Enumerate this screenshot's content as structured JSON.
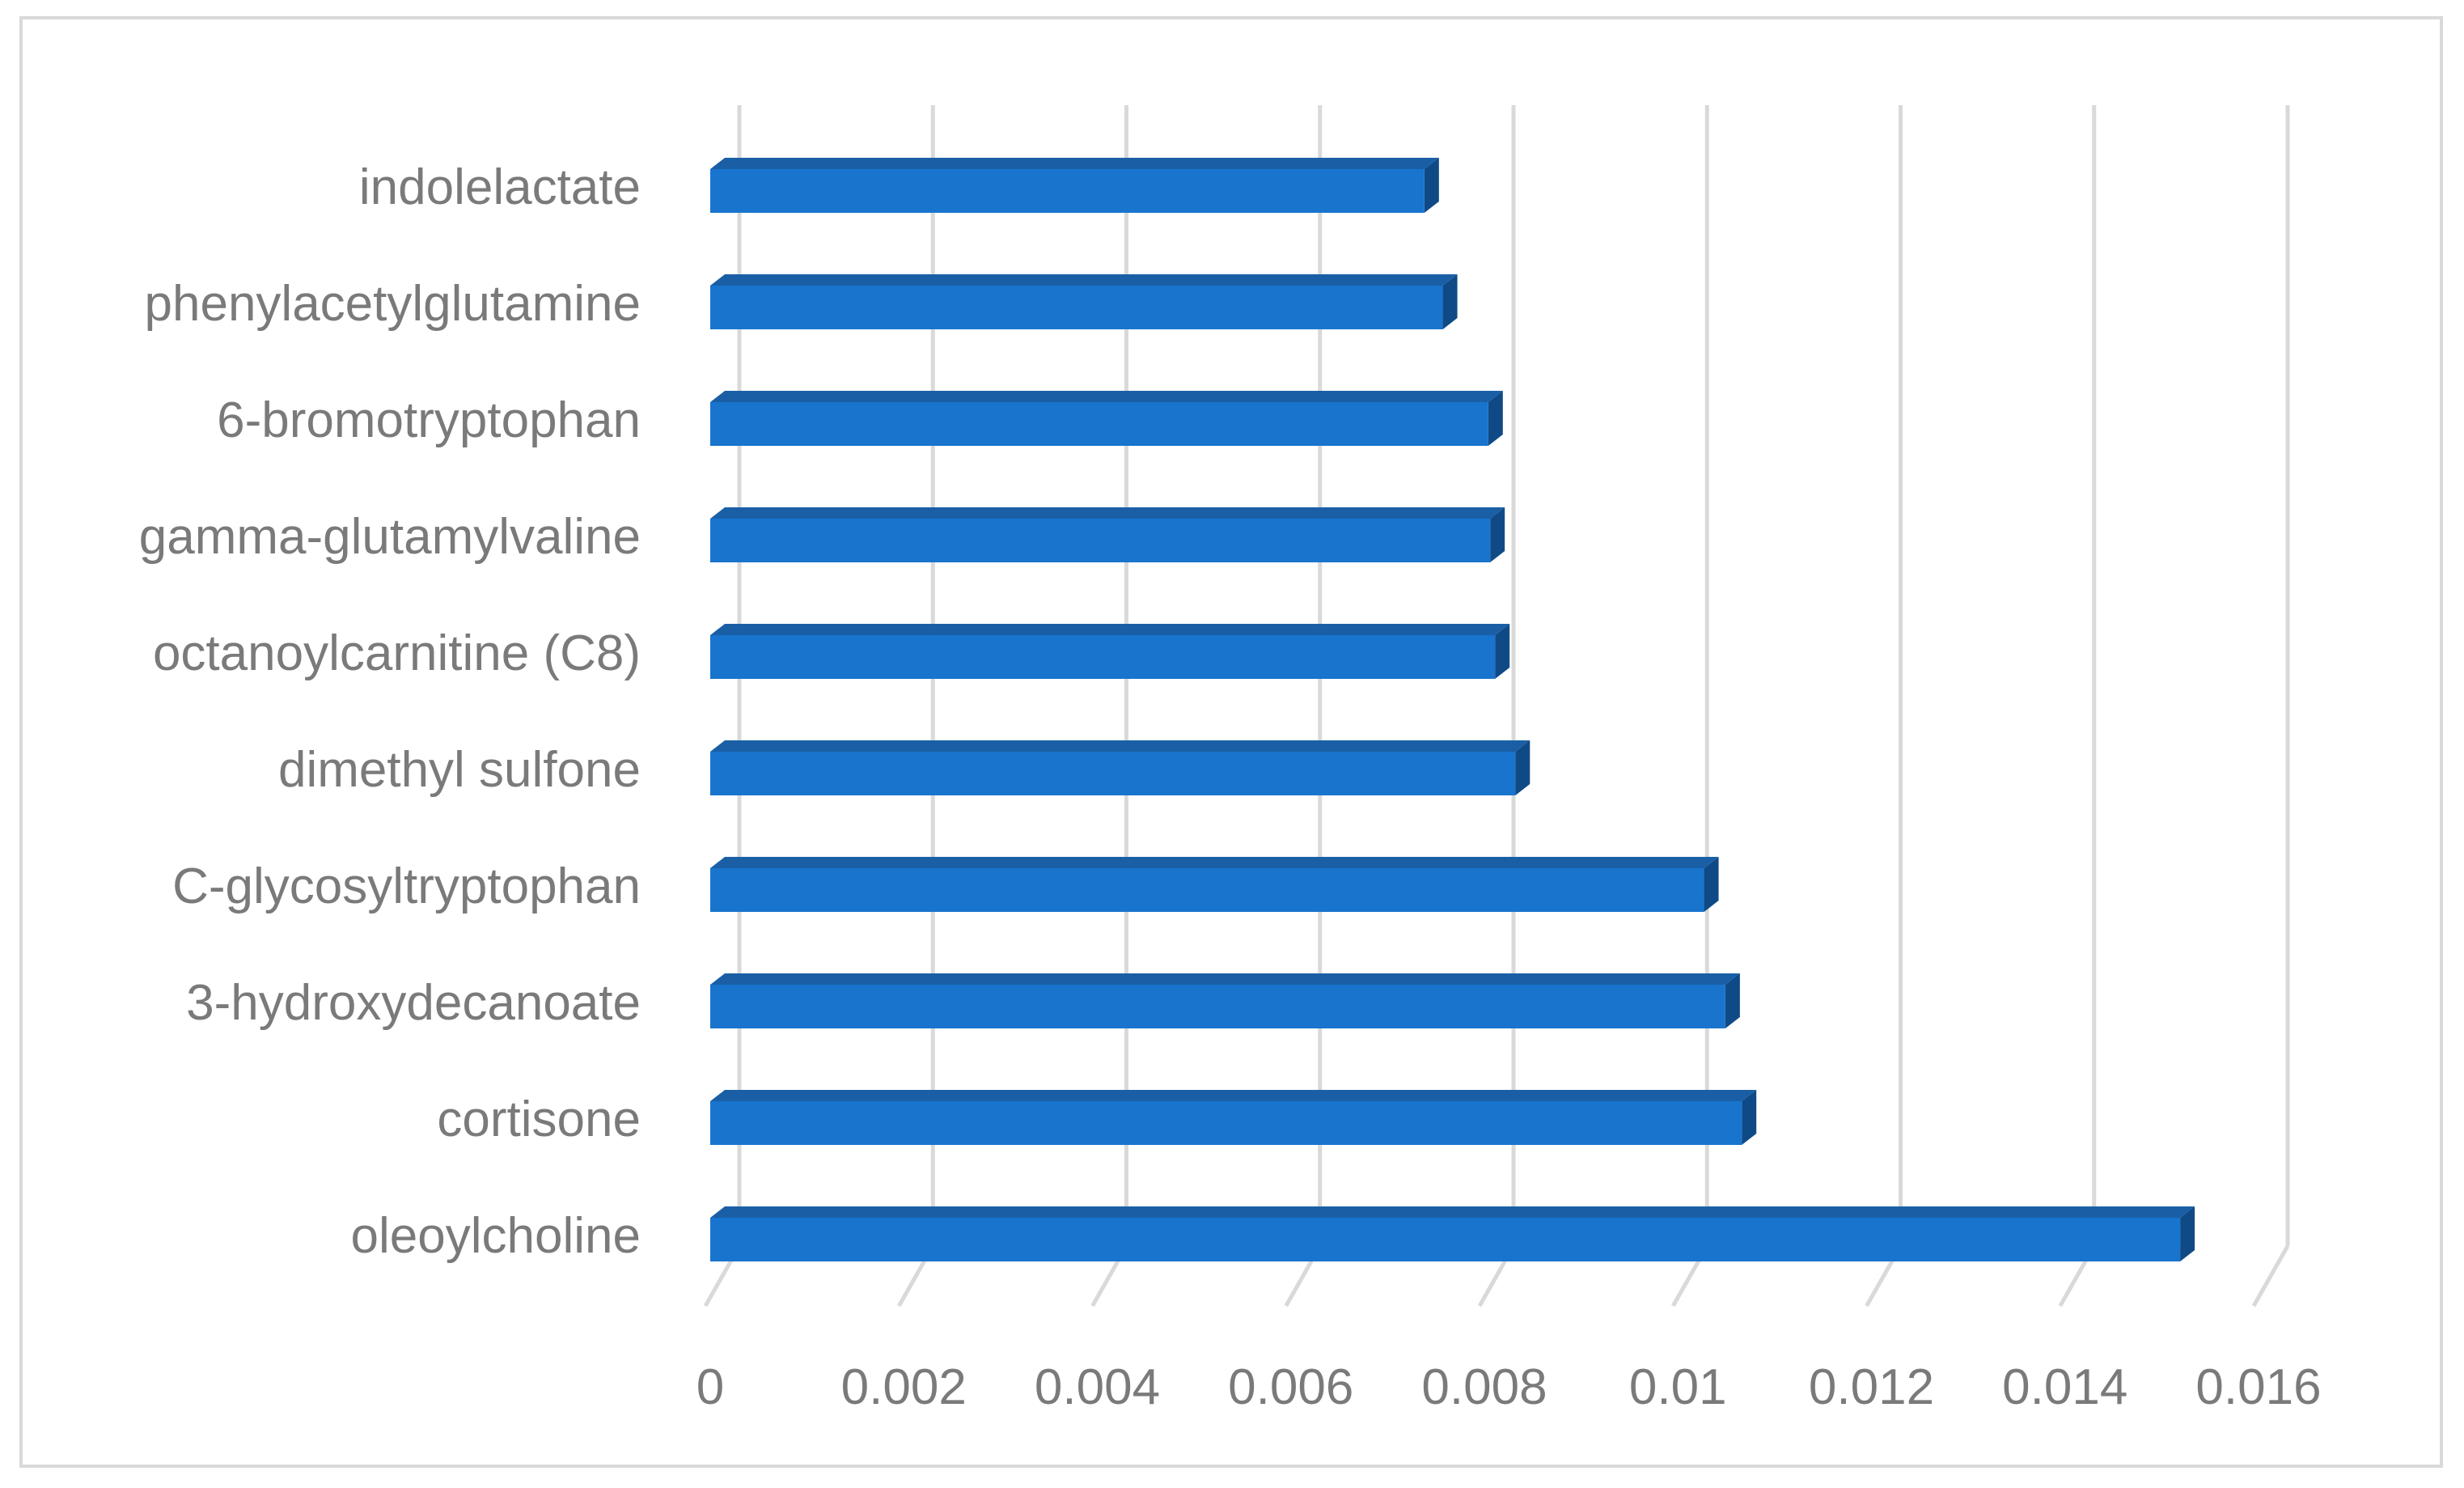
{
  "chart_data": {
    "type": "bar",
    "orientation": "horizontal",
    "style": "3d",
    "title": "",
    "xlabel": "",
    "ylabel": "",
    "categories": [
      "indolelactate",
      "phenylacetylglutamine",
      "6-bromotryptophan",
      "gamma-glutamylvaline",
      "octanoylcarnitine (C8)",
      "dimethyl sulfone",
      "C-glycosyltryptophan",
      "3-hydroxydecanoate",
      "cortisone",
      "oleoylcholine"
    ],
    "values": [
      0.00738,
      0.00757,
      0.00804,
      0.00806,
      0.00811,
      0.00832,
      0.01027,
      0.01049,
      0.01066,
      0.01519
    ],
    "xlim": [
      0,
      0.016
    ],
    "xticks": [
      "0",
      "0.002",
      "0.004",
      "0.006",
      "0.008",
      "0.01",
      "0.012",
      "0.014",
      "0.016"
    ],
    "grid": "vertical",
    "legend": "none",
    "colors": {
      "bar_front": "#1874cd",
      "bar_top": "#1a5fa6",
      "bar_side": "#0f4a86",
      "grid": "#d9d9d9",
      "text": "#7a7a7a"
    }
  }
}
